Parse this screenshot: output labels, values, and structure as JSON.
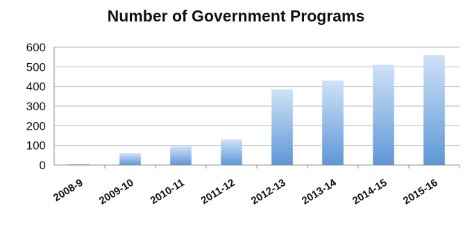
{
  "chart_data": {
    "type": "bar",
    "title": "Number of Government Programs",
    "categories": [
      "2008-9",
      "2009-10",
      "2010-11",
      "2011-12",
      "2012-13",
      "2013-14",
      "2014-15",
      "2015-16"
    ],
    "values": [
      2,
      60,
      95,
      130,
      385,
      430,
      510,
      560
    ],
    "ylim": [
      0,
      600
    ],
    "yticks": [
      0,
      100,
      200,
      300,
      400,
      500,
      600
    ],
    "grid": true,
    "legend": "none",
    "colors": {
      "bar_top": "#cfe2f8",
      "bar_bottom": "#5d97d6",
      "grid": "#b7b7b7",
      "axis": "#8c8c8c"
    }
  }
}
